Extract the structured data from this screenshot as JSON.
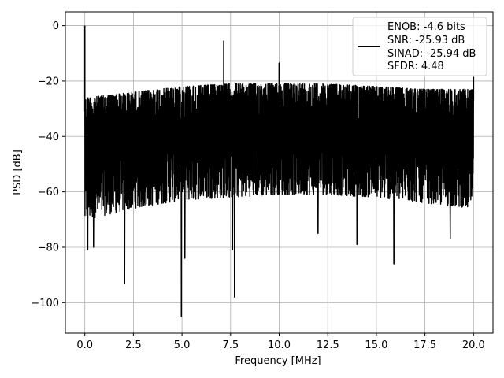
{
  "chart_data": {
    "type": "line",
    "title": "",
    "xlabel": "Frequency [MHz]",
    "ylabel": "PSD [dB]",
    "xlim": [
      -1.0,
      21.0
    ],
    "ylim": [
      -111,
      5
    ],
    "xticks": [
      0.0,
      2.5,
      5.0,
      7.5,
      10.0,
      12.5,
      15.0,
      17.5,
      20.0
    ],
    "xtick_labels": [
      "0.0",
      "2.5",
      "5.0",
      "7.5",
      "10.0",
      "12.5",
      "15.0",
      "17.5",
      "20.0"
    ],
    "yticks": [
      0,
      -20,
      -40,
      -60,
      -80,
      -100
    ],
    "ytick_labels": [
      "0",
      "−20",
      "−40",
      "−60",
      "−80",
      "−100"
    ],
    "grid": true,
    "legend": {
      "placement": "top-right",
      "lines": [
        "ENOB: -4.6 bits",
        "SNR: -25.93 dB",
        "SINAD: -25.94 dB",
        "SFDR: 4.48"
      ]
    },
    "series": [
      {
        "color": "#000000",
        "noise_envelope": {
          "x": [
            0.0,
            0.1,
            2.5,
            5.0,
            7.5,
            10.0,
            12.5,
            15.0,
            17.5,
            20.0
          ],
          "upper": [
            -27,
            -26,
            -24,
            -22,
            -21,
            -21,
            -21,
            -22,
            -23,
            -23
          ],
          "lower": [
            -72,
            -70,
            -66,
            -63,
            -62,
            -61,
            -61,
            -62,
            -64,
            -66
          ]
        },
        "peaks": [
          {
            "x": 0.0,
            "y": 0.0
          },
          {
            "x": 7.15,
            "y": -5.5
          },
          {
            "x": 10.0,
            "y": -13.5
          },
          {
            "x": 20.0,
            "y": -18.5
          }
        ],
        "dips": [
          {
            "x": 0.15,
            "y": -81
          },
          {
            "x": 0.45,
            "y": -80
          },
          {
            "x": 2.05,
            "y": -93
          },
          {
            "x": 4.97,
            "y": -105
          },
          {
            "x": 5.15,
            "y": -84
          },
          {
            "x": 7.7,
            "y": -98
          },
          {
            "x": 7.6,
            "y": -81
          },
          {
            "x": 15.9,
            "y": -86
          },
          {
            "x": 14.0,
            "y": -79
          },
          {
            "x": 12.0,
            "y": -75
          },
          {
            "x": 18.8,
            "y": -77
          }
        ]
      }
    ]
  }
}
